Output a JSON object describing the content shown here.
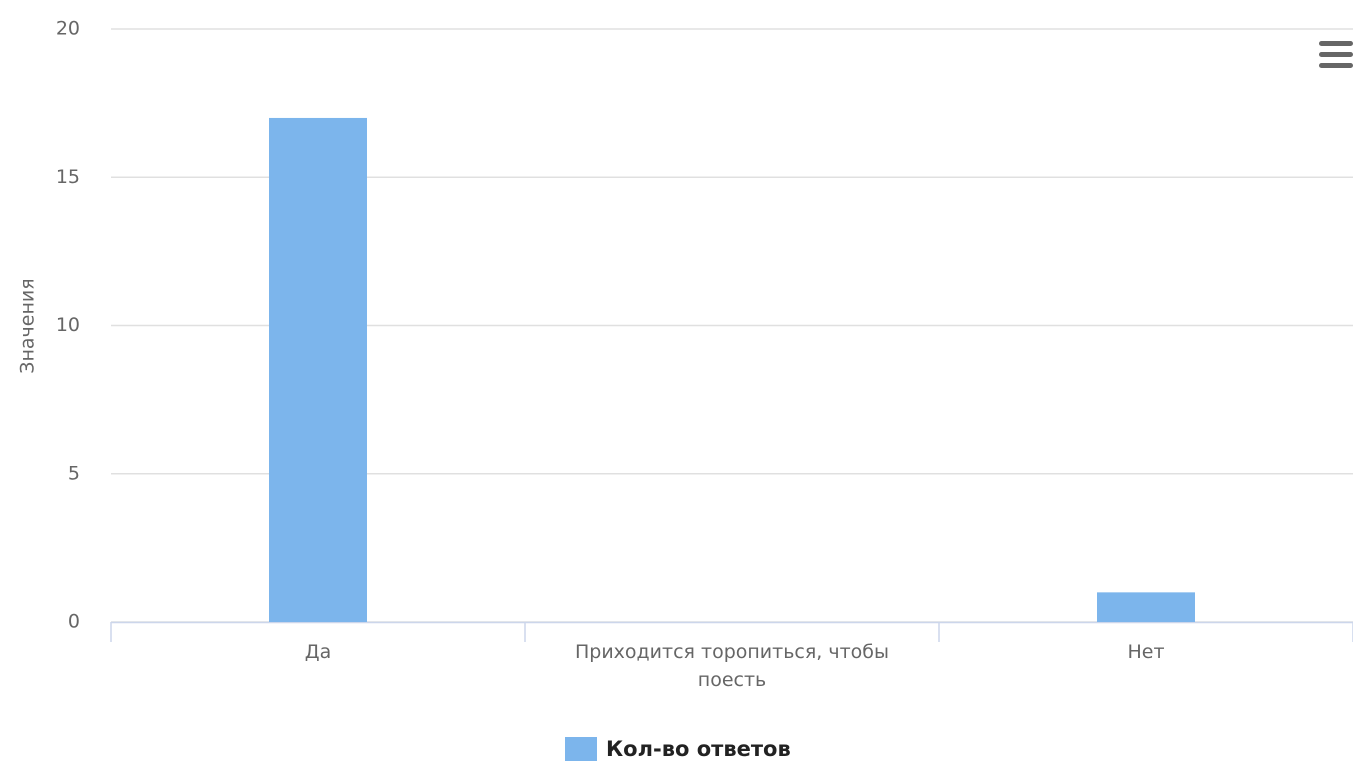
{
  "chart_data": {
    "type": "bar",
    "y_axis_label": "Значения",
    "categories": [
      "Да",
      "Приходится торопиться, чтобы поесть",
      "Нет"
    ],
    "series": [
      {
        "name": "Кол-во ответов",
        "color": "#7cb5ec",
        "values": [
          17,
          0,
          1
        ]
      }
    ],
    "ylim": [
      0,
      20
    ],
    "yticks": [
      0,
      5,
      10,
      15,
      20
    ],
    "grid": true,
    "legend": "bottom"
  }
}
